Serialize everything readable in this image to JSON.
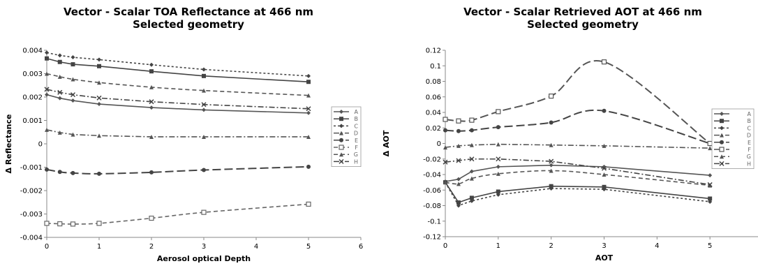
{
  "chart_data": [
    {
      "type": "line",
      "title": "Vector - Scalar TOA Reflectance at 466 nm",
      "subtitle": "Selected geometry",
      "xlabel": "Aerosol optical Depth",
      "ylabel": "Δ Reflectance",
      "xlim": [
        0,
        6
      ],
      "ylim": [
        -0.004,
        0.004
      ],
      "xticks": [
        "0",
        "1",
        "2",
        "3",
        "4",
        "5",
        "6"
      ],
      "yticks": [
        "-0.004",
        "-0.003",
        "-0.002",
        "-0.001",
        "0",
        "0.001",
        "0.002",
        "0.003",
        "0.004"
      ],
      "grid": false,
      "legend_position": "right",
      "x": [
        0,
        0.25,
        0.5,
        1,
        2,
        3,
        5
      ],
      "series": [
        {
          "name": "A",
          "marker": "diamond",
          "dash": "solid",
          "color": "#555555",
          "values": [
            0.0021,
            0.00195,
            0.00185,
            0.0017,
            0.00155,
            0.00145,
            0.00132
          ]
        },
        {
          "name": "B",
          "marker": "square",
          "dash": "solid",
          "color": "#444444",
          "values": [
            0.00365,
            0.0035,
            0.0034,
            0.00332,
            0.0031,
            0.0029,
            0.00265
          ]
        },
        {
          "name": "C",
          "marker": "diamond",
          "dash": "dotted",
          "color": "#444444",
          "values": [
            0.0039,
            0.00378,
            0.0037,
            0.0036,
            0.00338,
            0.00318,
            0.0029
          ]
        },
        {
          "name": "D",
          "marker": "triangle",
          "dash": "dashdot",
          "color": "#555555",
          "values": [
            0.0006,
            0.00048,
            0.0004,
            0.00035,
            0.0003,
            0.0003,
            0.0003
          ]
        },
        {
          "name": "E",
          "marker": "circle",
          "dash": "longdash",
          "color": "#444444",
          "values": [
            -0.0011,
            -0.0012,
            -0.00125,
            -0.00128,
            -0.00122,
            -0.00112,
            -0.00098
          ]
        },
        {
          "name": "F",
          "marker": "opensquare",
          "dash": "dashed",
          "color": "#666666",
          "values": [
            -0.0034,
            -0.00342,
            -0.00343,
            -0.0034,
            -0.00318,
            -0.00293,
            -0.00258
          ]
        },
        {
          "name": "G",
          "marker": "triangle",
          "dash": "dashed",
          "color": "#555555",
          "values": [
            0.003,
            0.00287,
            0.00276,
            0.00262,
            0.00242,
            0.00228,
            0.00207
          ]
        },
        {
          "name": "H",
          "marker": "x",
          "dash": "dashdot",
          "color": "#444444",
          "values": [
            0.00233,
            0.0022,
            0.0021,
            0.00196,
            0.0018,
            0.00168,
            0.0015
          ]
        }
      ]
    },
    {
      "type": "line",
      "title": "Vector - Scalar Retrieved AOT at 466 nm",
      "subtitle": "Selected geometry",
      "xlabel": "AOT",
      "ylabel": "Δ AOT",
      "xlim": [
        0,
        6
      ],
      "ylim": [
        -0.12,
        0.12
      ],
      "xticks": [
        "0",
        "1",
        "2",
        "3",
        "4",
        "5"
      ],
      "yticks": [
        "-0.12",
        "-0.1",
        "-0.08",
        "-0.06",
        "-0.04",
        "-0.02",
        "0",
        "0.02",
        "0.04",
        "0.06",
        "0.08",
        "0.1",
        "0.12"
      ],
      "grid": false,
      "legend_position": "right",
      "x": [
        0,
        0.25,
        0.5,
        1,
        2,
        3,
        5
      ],
      "series": [
        {
          "name": "A",
          "marker": "diamond",
          "dash": "solid",
          "color": "#555555",
          "values": [
            -0.049,
            -0.046,
            -0.036,
            -0.03,
            -0.028,
            -0.03,
            -0.041
          ]
        },
        {
          "name": "B",
          "marker": "square",
          "dash": "solid",
          "color": "#444444",
          "values": [
            -0.05,
            -0.076,
            -0.07,
            -0.062,
            -0.055,
            -0.056,
            -0.071
          ]
        },
        {
          "name": "C",
          "marker": "diamond",
          "dash": "dotted",
          "color": "#444444",
          "values": [
            -0.05,
            -0.08,
            -0.074,
            -0.066,
            -0.058,
            -0.059,
            -0.075
          ]
        },
        {
          "name": "D",
          "marker": "triangle",
          "dash": "dashdot",
          "color": "#555555",
          "values": [
            -0.005,
            -0.003,
            -0.002,
            -0.001,
            -0.002,
            -0.003,
            -0.006
          ]
        },
        {
          "name": "E",
          "marker": "circle",
          "dash": "longdash",
          "color": "#444444",
          "values": [
            0.017,
            0.016,
            0.017,
            0.021,
            0.027,
            0.042,
            0.0
          ]
        },
        {
          "name": "F",
          "marker": "opensquare",
          "dash": "longdash",
          "color": "#555555",
          "values": [
            0.031,
            0.029,
            0.03,
            0.041,
            0.061,
            0.105,
            0.0
          ]
        },
        {
          "name": "G",
          "marker": "triangle",
          "dash": "dashed",
          "color": "#555555",
          "values": [
            -0.05,
            -0.052,
            -0.045,
            -0.039,
            -0.035,
            -0.04,
            -0.054
          ]
        },
        {
          "name": "H",
          "marker": "x",
          "dash": "dashdot",
          "color": "#444444",
          "values": [
            -0.024,
            -0.022,
            -0.02,
            -0.02,
            -0.023,
            -0.032,
            -0.053
          ]
        }
      ]
    }
  ]
}
